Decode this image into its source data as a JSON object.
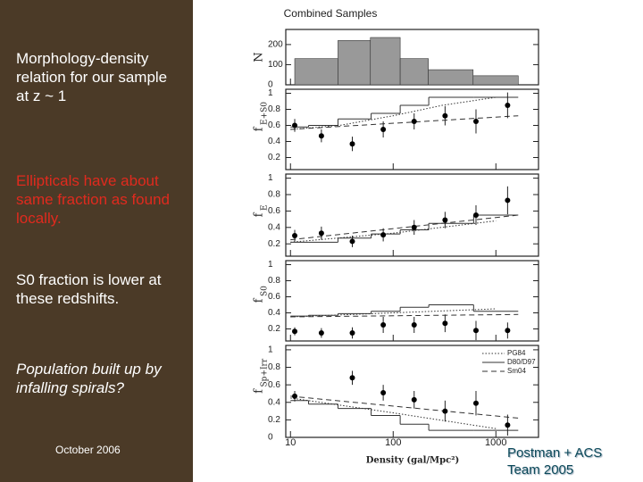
{
  "slide": {
    "heading": "Morphology-density relation for our sample at z ~ 1",
    "point1": "Ellipticals have about same fraction as found locally.",
    "point2": "S0 fraction is lower at these redshifts.",
    "point3": "Population built up by infalling spirals?",
    "date": "October 2006",
    "credit": "Postman + ACS Team 2005"
  },
  "chart_data": [
    {
      "type": "histogram",
      "title": "Combined Samples",
      "ylabel": "N",
      "bins": [
        11,
        29,
        60,
        117,
        220,
        600,
        1650
      ],
      "values": [
        130,
        220,
        235,
        130,
        75,
        45
      ],
      "color": "#999999",
      "xscale": "log",
      "xlim": [
        9,
        2600
      ],
      "xticks": [
        10,
        100,
        1000
      ],
      "ylim": [
        0,
        275
      ],
      "yticks": [
        0,
        100,
        200
      ]
    },
    {
      "type": "errorbar",
      "ylabel": "f",
      "ylabel_sub": "E+S0",
      "xscale": "log",
      "xlim": [
        9,
        2600
      ],
      "xticks": [
        10,
        100,
        1000
      ],
      "ylim": [
        0.05,
        1.05
      ],
      "yticks": [
        0.2,
        0.4,
        0.6,
        0.8,
        1
      ],
      "x": [
        11,
        20,
        40,
        80,
        160,
        320,
        640,
        1300
      ],
      "values": [
        0.6,
        0.47,
        0.37,
        0.55,
        0.65,
        0.72,
        0.65,
        0.85
      ],
      "errors": [
        0.08,
        0.08,
        0.09,
        0.1,
        0.1,
        0.12,
        0.15,
        0.16
      ],
      "lines": [
        {
          "style": "dotted",
          "x": [
            10,
            30,
            100,
            300,
            1000
          ],
          "values": [
            0.55,
            0.6,
            0.72,
            0.85,
            0.95
          ]
        },
        {
          "style": "solid",
          "edges": [
            10,
            15,
            29,
            61,
            117,
            222,
            607,
            1650
          ],
          "values": [
            0.58,
            0.6,
            0.68,
            0.75,
            0.85,
            0.95,
            0.95
          ]
        },
        {
          "style": "dashed",
          "x": [
            10,
            1650
          ],
          "values": [
            0.55,
            0.72
          ]
        }
      ]
    },
    {
      "type": "errorbar",
      "ylabel": "f",
      "ylabel_sub": "E",
      "xscale": "log",
      "xlim": [
        9,
        2600
      ],
      "xticks": [
        10,
        100,
        1000
      ],
      "ylim": [
        0.05,
        1.05
      ],
      "yticks": [
        0.2,
        0.4,
        0.6,
        0.8,
        1
      ],
      "x": [
        11,
        20,
        40,
        80,
        160,
        320,
        640,
        1300
      ],
      "values": [
        0.3,
        0.33,
        0.23,
        0.31,
        0.4,
        0.49,
        0.55,
        0.73
      ],
      "errors": [
        0.07,
        0.08,
        0.07,
        0.08,
        0.09,
        0.1,
        0.12,
        0.17
      ],
      "lines": [
        {
          "style": "dotted",
          "x": [
            10,
            100,
            1000
          ],
          "values": [
            0.22,
            0.33,
            0.48
          ]
        },
        {
          "style": "solid",
          "edges": [
            10,
            15,
            29,
            61,
            117,
            222,
            607,
            1650
          ],
          "values": [
            0.22,
            0.22,
            0.27,
            0.32,
            0.37,
            0.45,
            0.55
          ]
        },
        {
          "style": "dashed",
          "x": [
            10,
            1650
          ],
          "values": [
            0.25,
            0.55
          ]
        }
      ]
    },
    {
      "type": "errorbar",
      "ylabel": "f",
      "ylabel_sub": "S0",
      "xscale": "log",
      "xlim": [
        9,
        2600
      ],
      "xticks": [
        10,
        100,
        1000
      ],
      "ylim": [
        0.05,
        1.05
      ],
      "yticks": [
        0.2,
        0.4,
        0.6,
        0.8,
        1
      ],
      "x": [
        11,
        20,
        40,
        80,
        160,
        320,
        640,
        1300
      ],
      "values": [
        0.17,
        0.15,
        0.15,
        0.25,
        0.25,
        0.27,
        0.18,
        0.18
      ],
      "errors": [
        0.05,
        0.06,
        0.07,
        0.1,
        0.1,
        0.11,
        0.12,
        0.1
      ],
      "lines": [
        {
          "style": "dotted",
          "x": [
            10,
            1000
          ],
          "values": [
            0.35,
            0.45
          ]
        },
        {
          "style": "solid",
          "edges": [
            10,
            15,
            29,
            61,
            117,
            222,
            607,
            1650
          ],
          "values": [
            0.36,
            0.37,
            0.39,
            0.42,
            0.47,
            0.5,
            0.42
          ]
        },
        {
          "style": "dashed",
          "x": [
            10,
            1650
          ],
          "values": [
            0.35,
            0.38
          ]
        }
      ]
    },
    {
      "type": "errorbar",
      "ylabel": "f",
      "ylabel_sub": "Sp+Irr",
      "xscale": "log",
      "xlim": [
        9,
        2600
      ],
      "xticks": [
        10,
        100,
        1000
      ],
      "xlabel": "Density (gal/Mpc²)",
      "legend": [
        "PG84",
        "D80/D97",
        "Sm04"
      ],
      "ylim": [
        0,
        1.05
      ],
      "yticks": [
        0,
        0.2,
        0.4,
        0.6,
        0.8,
        1
      ],
      "x": [
        11,
        40,
        80,
        160,
        320,
        640,
        1300
      ],
      "values": [
        0.47,
        0.68,
        0.51,
        0.43,
        0.3,
        0.39,
        0.14
      ],
      "errors": [
        0.06,
        0.08,
        0.09,
        0.1,
        0.12,
        0.14,
        0.12
      ],
      "lines": [
        {
          "style": "dotted",
          "x": [
            10,
            100,
            1000
          ],
          "values": [
            0.45,
            0.28,
            0.1
          ]
        },
        {
          "style": "solid",
          "edges": [
            10,
            15,
            29,
            61,
            117,
            222,
            607,
            1650
          ],
          "values": [
            0.42,
            0.38,
            0.33,
            0.25,
            0.15,
            0.08,
            0.08
          ]
        },
        {
          "style": "dashed",
          "x": [
            10,
            1650
          ],
          "values": [
            0.47,
            0.22
          ]
        }
      ]
    }
  ]
}
